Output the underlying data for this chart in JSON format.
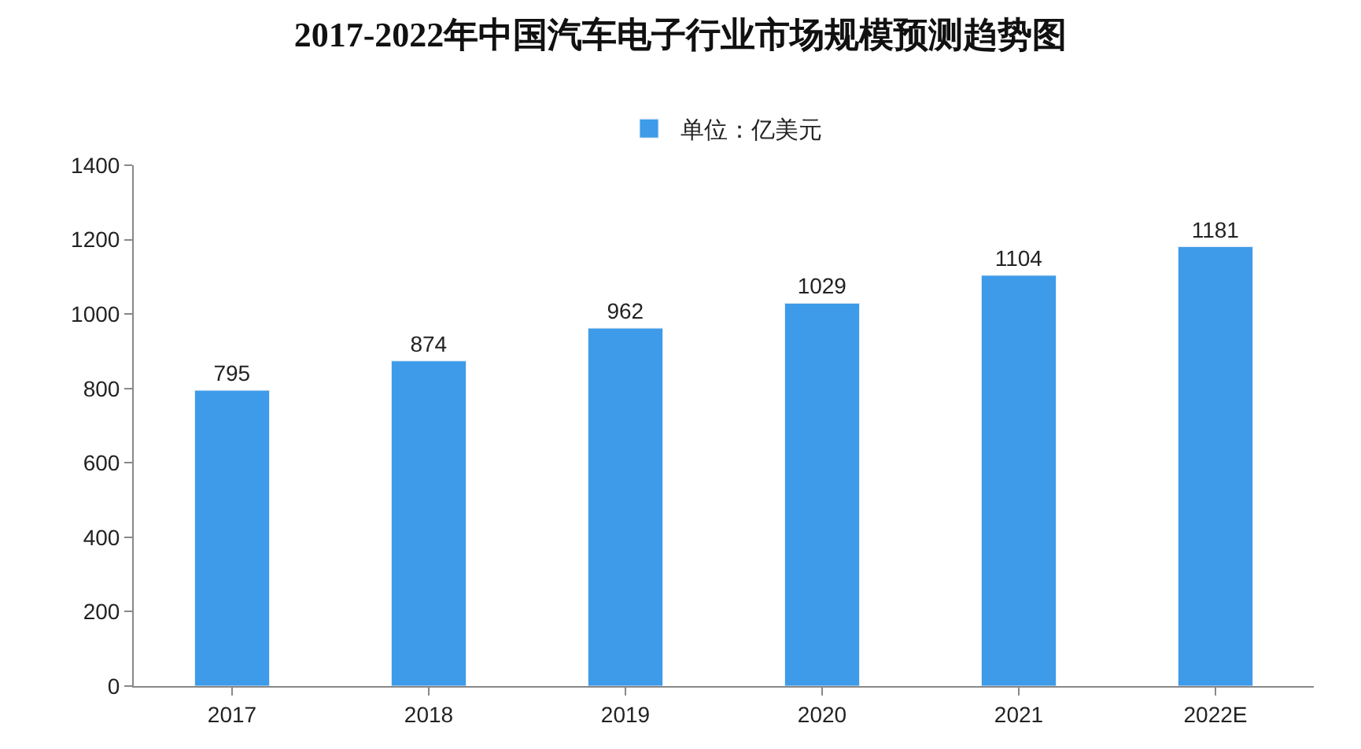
{
  "chart_data": {
    "type": "bar",
    "title": "2017-2022年中国汽车电子行业市场规模预测趋势图",
    "categories": [
      "2017",
      "2018",
      "2019",
      "2020",
      "2021",
      "2022E"
    ],
    "series": [
      {
        "name": "单位：亿美元",
        "color": "#3d9be9",
        "values": [
          795,
          874,
          962,
          1029,
          1104,
          1181
        ]
      }
    ],
    "ylim": [
      0,
      1400
    ],
    "yticks": [
      0,
      200,
      400,
      600,
      800,
      1000,
      1200,
      1400
    ],
    "grid": false,
    "legend": "top",
    "data_labels": true
  }
}
